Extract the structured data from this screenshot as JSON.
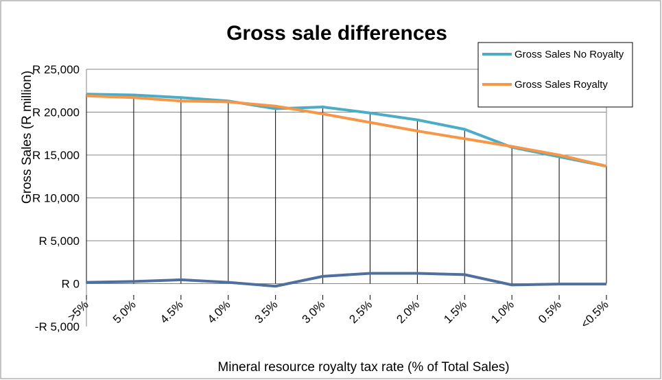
{
  "chart_data": {
    "type": "line",
    "title": "Gross sale differences",
    "xlabel": "Mineral resource royalty tax rate (% of Total Sales)",
    "ylabel": "Gross Sales (R million)",
    "ylim": [
      -5000,
      25000
    ],
    "yticks": [
      25000,
      20000,
      15000,
      10000,
      5000,
      0,
      -5000
    ],
    "ytick_labels": [
      "R 25,000",
      "R 20,000",
      "R 15,000",
      "R 10,000",
      "R 5,000",
      "R 0",
      "-R 5,000"
    ],
    "categories": [
      ">5%",
      "5.0%",
      "4.5%",
      "4.0%",
      "3.5%",
      "3.0%",
      "2.5%",
      "2.0%",
      "1.5%",
      "1.0%",
      "0.5%",
      "<0.5%"
    ],
    "grid": "horizontal",
    "legend_position": "top-right",
    "series": [
      {
        "name": "Gross Sales No Royalty",
        "color": "#4BACC6",
        "values": [
          22100,
          22000,
          21700,
          21300,
          20400,
          20600,
          19900,
          19100,
          18000,
          15900,
          14800,
          13700
        ]
      },
      {
        "name": "Gross Sales Royalty",
        "color": "#F79646",
        "values": [
          21900,
          21700,
          21300,
          21200,
          20700,
          19800,
          18800,
          17800,
          16900,
          16000,
          15000,
          13700
        ]
      },
      {
        "name": "",
        "color": "#4F6F9E",
        "values": [
          150,
          250,
          450,
          150,
          -300,
          850,
          1200,
          1200,
          1050,
          -150,
          -50,
          -50
        ]
      }
    ]
  }
}
